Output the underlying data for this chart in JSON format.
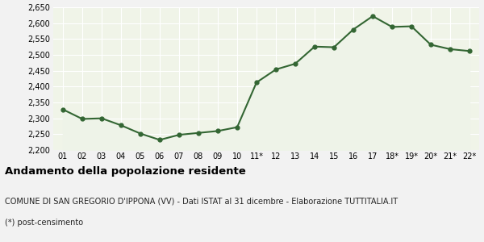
{
  "x_labels": [
    "01",
    "02",
    "03",
    "04",
    "05",
    "06",
    "07",
    "08",
    "09",
    "10",
    "11*",
    "12",
    "13",
    "14",
    "15",
    "16",
    "17",
    "18*",
    "19*",
    "20*",
    "21*",
    "22*"
  ],
  "y_values": [
    2328,
    2298,
    2300,
    2278,
    2252,
    2232,
    2248,
    2254,
    2260,
    2272,
    2413,
    2454,
    2472,
    2526,
    2524,
    2580,
    2622,
    2588,
    2590,
    2532,
    2518,
    2512
  ],
  "ylim": [
    2200,
    2650
  ],
  "yticks": [
    2200,
    2250,
    2300,
    2350,
    2400,
    2450,
    2500,
    2550,
    2600,
    2650
  ],
  "line_color": "#336633",
  "fill_color": "#eef3e8",
  "marker": "o",
  "marker_size": 3.5,
  "line_width": 1.5,
  "bg_color": "#f0f4e8",
  "fig_bg_color": "#f2f2f2",
  "title": "Andamento della popolazione residente",
  "subtitle": "COMUNE DI SAN GREGORIO D'IPPONA (VV) - Dati ISTAT al 31 dicembre - Elaborazione TUTTITALIA.IT",
  "footnote": "(*) post-censimento",
  "title_fontsize": 9.5,
  "subtitle_fontsize": 7.0,
  "footnote_fontsize": 7.0,
  "tick_fontsize": 7.0,
  "grid_color": "#ffffff"
}
